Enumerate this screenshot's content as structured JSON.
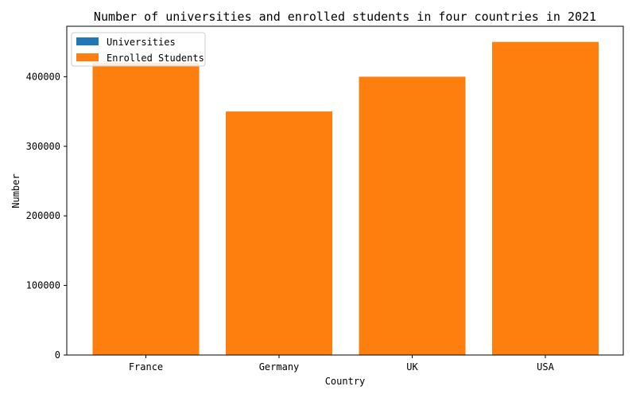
{
  "chart_data": {
    "type": "bar",
    "title": "Number of universities and enrolled students in four countries in 2021",
    "xlabel": "Country",
    "ylabel": "Number",
    "categories": [
      "France",
      "Germany",
      "UK",
      "USA"
    ],
    "ylim": [
      0,
      472500
    ],
    "yticks": [
      0,
      100000,
      200000,
      300000,
      400000
    ],
    "ytick_labels": [
      "0",
      "100000",
      "200000",
      "300000",
      "400000"
    ],
    "series": [
      {
        "name": "Universities",
        "values": [
          100,
          120,
          150,
          200
        ],
        "color": "#1f77b4"
      },
      {
        "name": "Enrolled Students",
        "values": [
          420000,
          350000,
          400000,
          450000
        ],
        "color": "#ff7f0e"
      }
    ],
    "legend_position": "top-left",
    "grid": false
  }
}
